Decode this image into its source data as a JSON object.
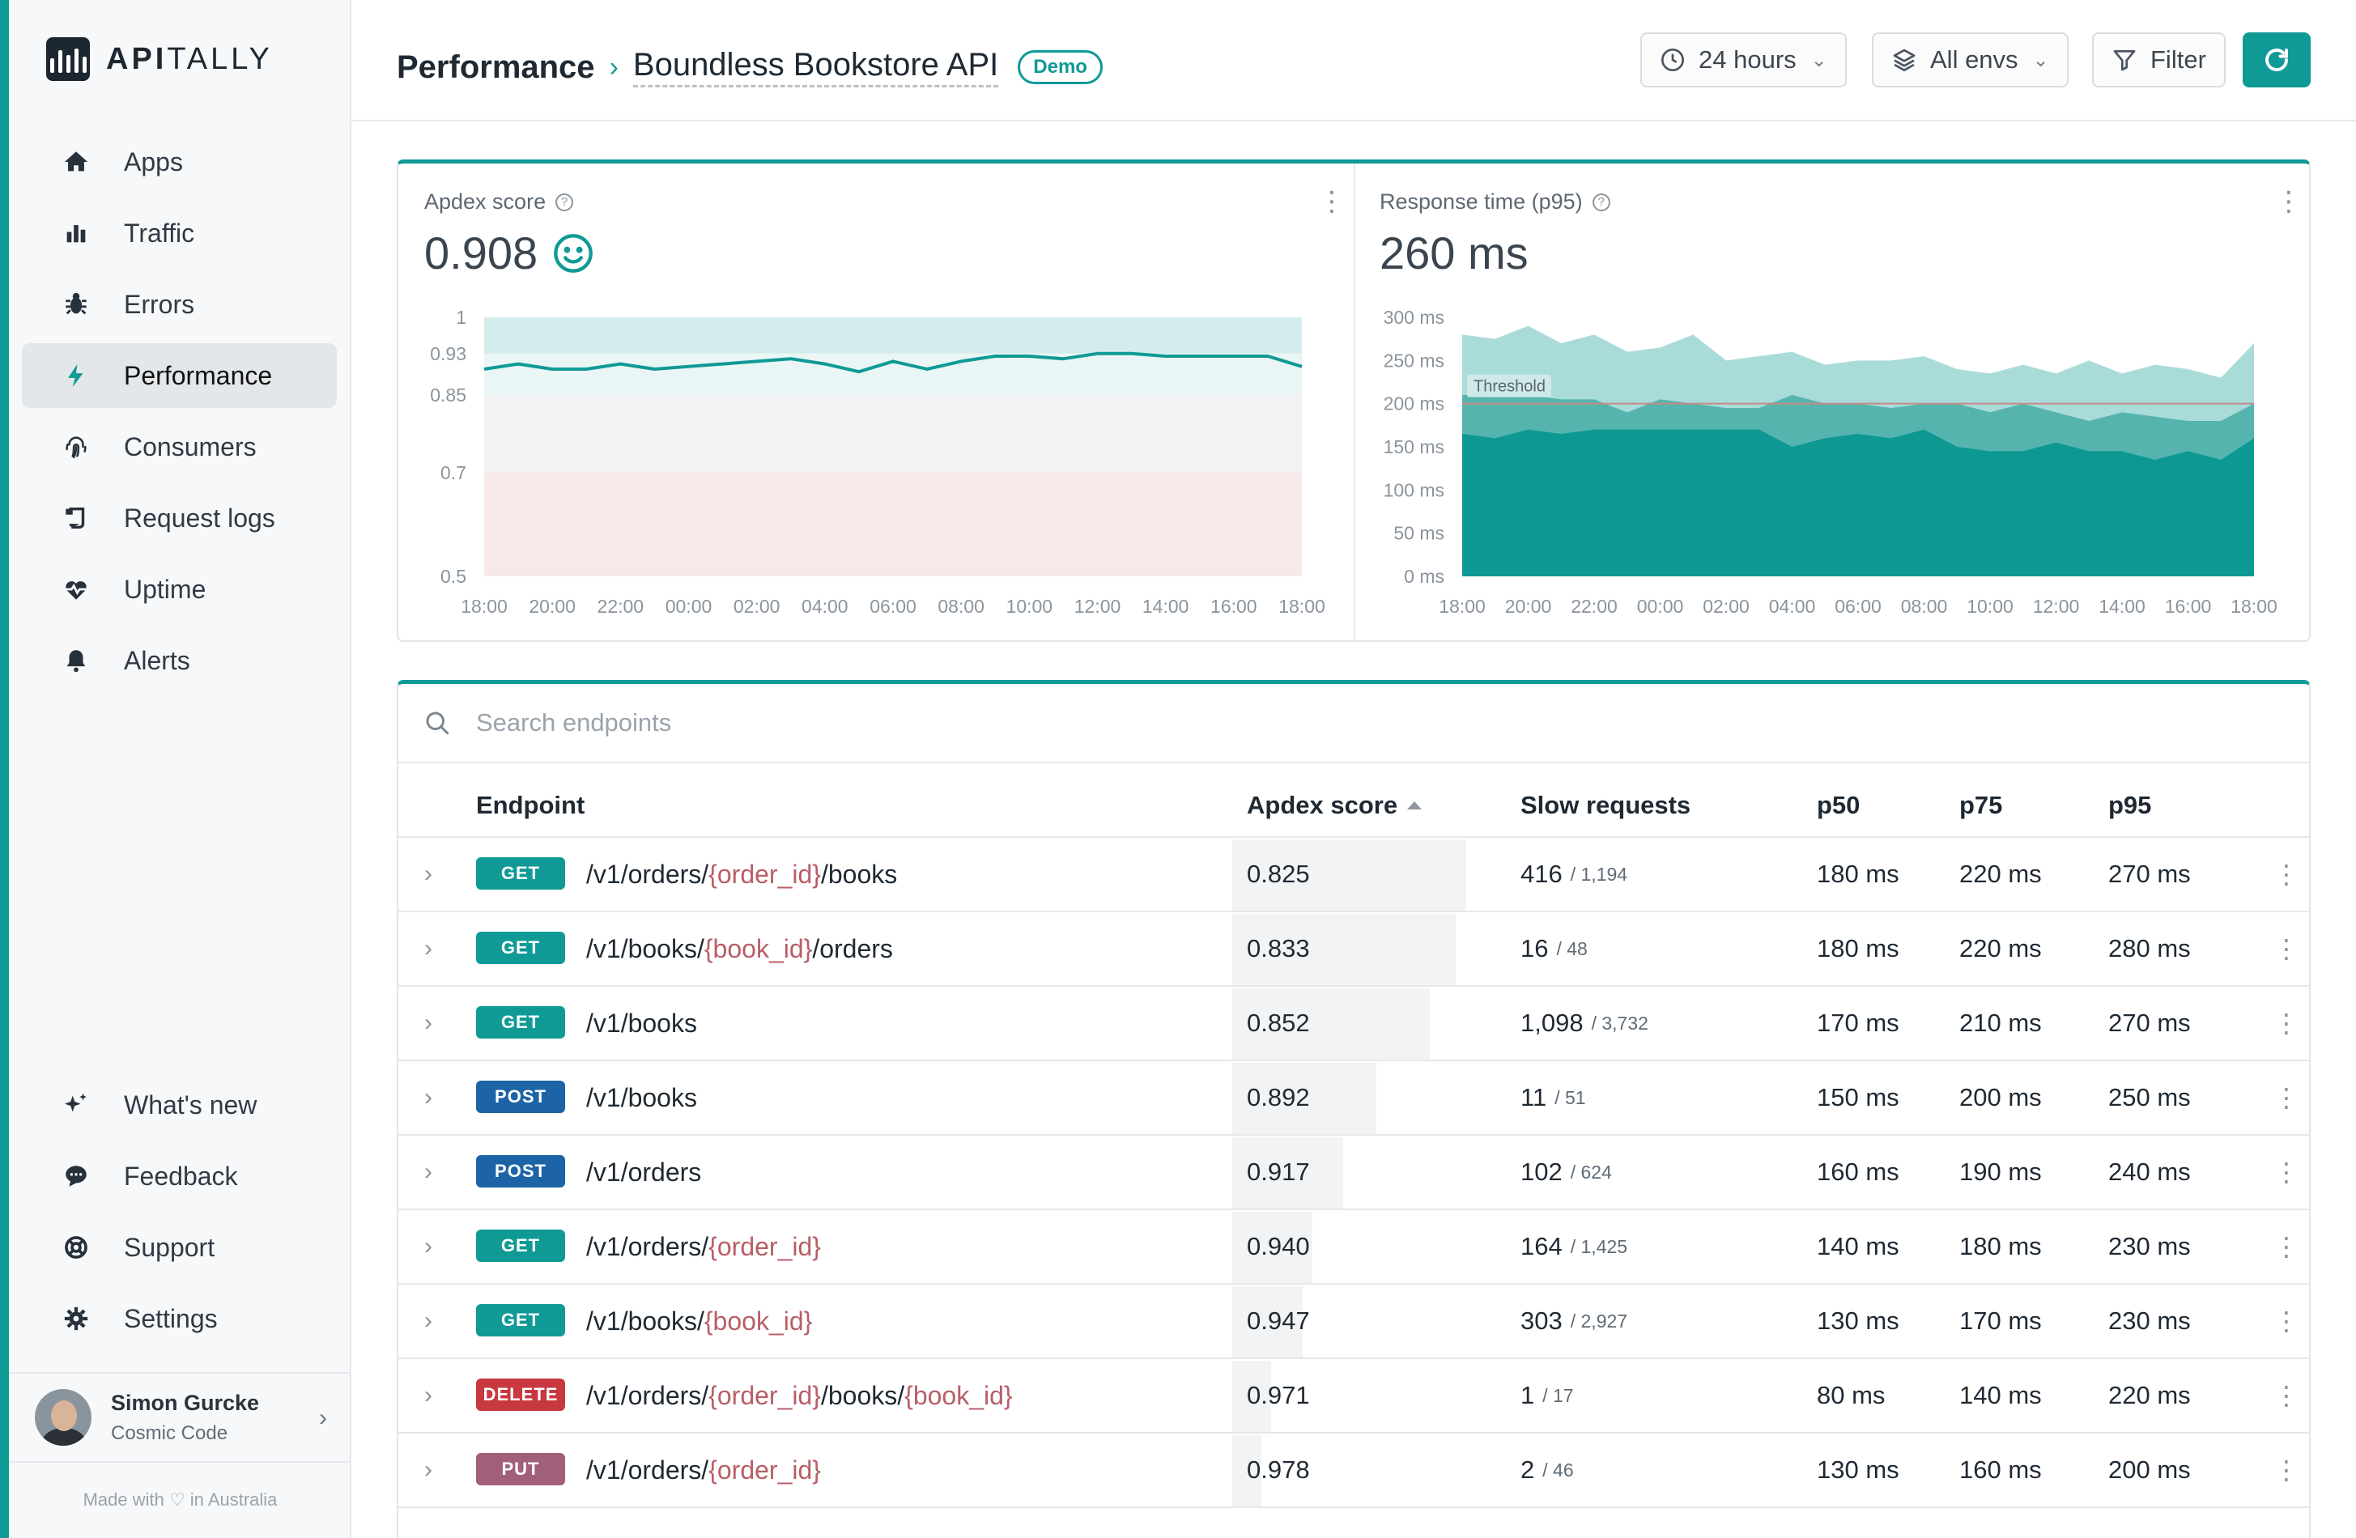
{
  "brand": {
    "name_bold": "API",
    "name_light": "TALLY"
  },
  "nav": {
    "items": [
      {
        "label": "Apps",
        "icon": "home-icon"
      },
      {
        "label": "Traffic",
        "icon": "bar-chart-icon"
      },
      {
        "label": "Errors",
        "icon": "bug-icon"
      },
      {
        "label": "Performance",
        "icon": "bolt-icon",
        "active": true
      },
      {
        "label": "Consumers",
        "icon": "fingerprint-icon"
      },
      {
        "label": "Request logs",
        "icon": "scroll-icon"
      },
      {
        "label": "Uptime",
        "icon": "heartbeat-icon"
      },
      {
        "label": "Alerts",
        "icon": "bell-icon"
      }
    ],
    "bottom": [
      {
        "label": "What's new",
        "icon": "sparkles-icon"
      },
      {
        "label": "Feedback",
        "icon": "chat-icon"
      },
      {
        "label": "Support",
        "icon": "lifebuoy-icon"
      },
      {
        "label": "Settings",
        "icon": "gear-icon"
      }
    ]
  },
  "user": {
    "name": "Simon Gurcke",
    "org": "Cosmic Code"
  },
  "footer": {
    "made_with": "Made with ♡ in Australia"
  },
  "header": {
    "breadcrumb_root": "Performance",
    "breadcrumb_sep": "›",
    "app_name": "Boundless Bookstore API",
    "badge": "Demo",
    "period": "24 hours",
    "envs": "All envs",
    "filter": "Filter"
  },
  "apdex_panel": {
    "title": "Apdex score",
    "value": "0.908"
  },
  "response_panel": {
    "title": "Response time (p95)",
    "value": "260 ms",
    "threshold_label": "Threshold"
  },
  "chart_data": [
    {
      "type": "line",
      "title": "Apdex score",
      "x": [
        "18:00",
        "19:00",
        "20:00",
        "21:00",
        "22:00",
        "23:00",
        "00:00",
        "01:00",
        "02:00",
        "03:00",
        "04:00",
        "05:00",
        "06:00",
        "07:00",
        "08:00",
        "09:00",
        "10:00",
        "11:00",
        "12:00",
        "13:00",
        "14:00",
        "15:00",
        "16:00",
        "17:00",
        "18:00"
      ],
      "values": [
        0.9,
        0.91,
        0.9,
        0.9,
        0.91,
        0.9,
        0.905,
        0.91,
        0.915,
        0.92,
        0.91,
        0.895,
        0.915,
        0.9,
        0.915,
        0.925,
        0.925,
        0.92,
        0.93,
        0.93,
        0.925,
        0.925,
        0.925,
        0.925,
        0.905
      ],
      "x_ticks": [
        "18:00",
        "20:00",
        "22:00",
        "00:00",
        "02:00",
        "04:00",
        "06:00",
        "08:00",
        "10:00",
        "12:00",
        "14:00",
        "16:00",
        "18:00"
      ],
      "y_ticks": [
        1,
        0.93,
        0.85,
        0.7,
        0.5
      ],
      "ylim": [
        0.5,
        1
      ],
      "bands": [
        {
          "from": 0.93,
          "to": 1,
          "color": "#d5ecec"
        },
        {
          "from": 0.85,
          "to": 0.93,
          "color": "#eaf6f5"
        },
        {
          "from": 0.7,
          "to": 0.85,
          "color": "#f1f2f4"
        },
        {
          "from": 0.5,
          "to": 0.7,
          "color": "#f8e8e8"
        }
      ],
      "line_color": "#0f9a96"
    },
    {
      "type": "area",
      "title": "Response time (p95)",
      "x": [
        "18:00",
        "19:00",
        "20:00",
        "21:00",
        "22:00",
        "23:00",
        "00:00",
        "01:00",
        "02:00",
        "03:00",
        "04:00",
        "05:00",
        "06:00",
        "07:00",
        "08:00",
        "09:00",
        "10:00",
        "11:00",
        "12:00",
        "13:00",
        "14:00",
        "15:00",
        "16:00",
        "17:00",
        "18:00"
      ],
      "series": [
        {
          "color": "#a9dcd9",
          "values": [
            280,
            275,
            290,
            270,
            280,
            260,
            265,
            280,
            250,
            255,
            260,
            245,
            250,
            250,
            255,
            240,
            235,
            245,
            235,
            250,
            235,
            245,
            240,
            230,
            270
          ]
        },
        {
          "color": "#56b4ae",
          "values": [
            210,
            210,
            210,
            205,
            205,
            190,
            205,
            200,
            195,
            195,
            210,
            200,
            200,
            195,
            200,
            200,
            190,
            200,
            190,
            180,
            190,
            185,
            180,
            180,
            200
          ]
        },
        {
          "color": "#0d9893",
          "values": [
            165,
            160,
            170,
            165,
            170,
            170,
            170,
            170,
            170,
            170,
            150,
            160,
            165,
            160,
            170,
            150,
            145,
            145,
            155,
            145,
            145,
            135,
            145,
            135,
            160
          ]
        }
      ],
      "threshold": 200,
      "x_ticks": [
        "18:00",
        "20:00",
        "22:00",
        "00:00",
        "02:00",
        "04:00",
        "06:00",
        "08:00",
        "10:00",
        "12:00",
        "14:00",
        "16:00",
        "18:00"
      ],
      "y_ticks": [
        "300 ms",
        "250 ms",
        "200 ms",
        "150 ms",
        "100 ms",
        "50 ms",
        "0 ms"
      ],
      "ylim": [
        0,
        300
      ]
    }
  ],
  "table": {
    "search_placeholder": "Search endpoints",
    "columns": [
      "Endpoint",
      "Apdex score",
      "Slow requests",
      "p50",
      "p75",
      "p95"
    ],
    "rows": [
      {
        "method": "GET",
        "path": [
          [
            "/v1/orders/",
            false
          ],
          [
            "{order_id}",
            true
          ],
          [
            "/books",
            false
          ]
        ],
        "apdex": "0.825",
        "apdex_value": 0.825,
        "slow": "416",
        "total": "/ 1,194",
        "p50": "180 ms",
        "p75": "220 ms",
        "p95": "270 ms"
      },
      {
        "method": "GET",
        "path": [
          [
            "/v1/books/",
            false
          ],
          [
            "{book_id}",
            true
          ],
          [
            "/orders",
            false
          ]
        ],
        "apdex": "0.833",
        "apdex_value": 0.833,
        "slow": "16",
        "total": "/ 48",
        "p50": "180 ms",
        "p75": "220 ms",
        "p95": "280 ms"
      },
      {
        "method": "GET",
        "path": [
          [
            "/v1/books",
            false
          ]
        ],
        "apdex": "0.852",
        "apdex_value": 0.852,
        "slow": "1,098",
        "total": "/ 3,732",
        "p50": "170 ms",
        "p75": "210 ms",
        "p95": "270 ms"
      },
      {
        "method": "POST",
        "path": [
          [
            "/v1/books",
            false
          ]
        ],
        "apdex": "0.892",
        "apdex_value": 0.892,
        "slow": "11",
        "total": "/ 51",
        "p50": "150 ms",
        "p75": "200 ms",
        "p95": "250 ms"
      },
      {
        "method": "POST",
        "path": [
          [
            "/v1/orders",
            false
          ]
        ],
        "apdex": "0.917",
        "apdex_value": 0.917,
        "slow": "102",
        "total": "/ 624",
        "p50": "160 ms",
        "p75": "190 ms",
        "p95": "240 ms"
      },
      {
        "method": "GET",
        "path": [
          [
            "/v1/orders/",
            false
          ],
          [
            "{order_id}",
            true
          ]
        ],
        "apdex": "0.940",
        "apdex_value": 0.94,
        "slow": "164",
        "total": "/ 1,425",
        "p50": "140 ms",
        "p75": "180 ms",
        "p95": "230 ms"
      },
      {
        "method": "GET",
        "path": [
          [
            "/v1/books/",
            false
          ],
          [
            "{book_id}",
            true
          ]
        ],
        "apdex": "0.947",
        "apdex_value": 0.947,
        "slow": "303",
        "total": "/ 2,927",
        "p50": "130 ms",
        "p75": "170 ms",
        "p95": "230 ms"
      },
      {
        "method": "DELETE",
        "path": [
          [
            "/v1/orders/",
            false
          ],
          [
            "{order_id}",
            true
          ],
          [
            "/books/",
            false
          ],
          [
            "{book_id}",
            true
          ]
        ],
        "apdex": "0.971",
        "apdex_value": 0.971,
        "slow": "1",
        "total": "/ 17",
        "p50": "80 ms",
        "p75": "140 ms",
        "p95": "220 ms"
      },
      {
        "method": "PUT",
        "path": [
          [
            "/v1/orders/",
            false
          ],
          [
            "{order_id}",
            true
          ]
        ],
        "apdex": "0.978",
        "apdex_value": 0.978,
        "slow": "2",
        "total": "/ 46",
        "p50": "130 ms",
        "p75": "160 ms",
        "p95": "200 ms"
      }
    ]
  }
}
